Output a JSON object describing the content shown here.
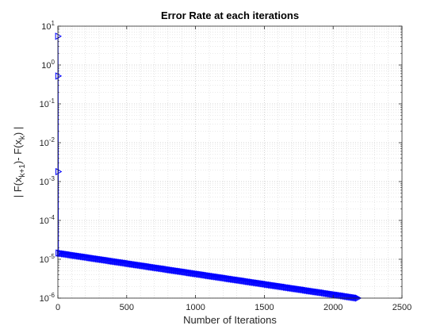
{
  "chart_data": {
    "type": "line",
    "title": "Error Rate at each iterations",
    "xlabel": "Number of Iterations",
    "ylabel": "| F(x_{k+1})- F(x_k) |",
    "ylabel_parts": {
      "pre1": "| F(x",
      "sub1": "k+1",
      "mid": ")- F(x",
      "sub2": "k",
      "post": ") |"
    },
    "xlim": [
      0,
      2500
    ],
    "ylim": [
      1e-06,
      10
    ],
    "yscale": "log",
    "grid": true,
    "minor_grid": true,
    "xticks": [
      0,
      500,
      1000,
      1500,
      2000,
      2500
    ],
    "xtick_labels": [
      "0",
      "500",
      "1000",
      "1500",
      "2000",
      "2500"
    ],
    "yticks": [
      {
        "value": 1e-06,
        "base": "10",
        "exp": "-6"
      },
      {
        "value": 1e-05,
        "base": "10",
        "exp": "-5"
      },
      {
        "value": 0.0001,
        "base": "10",
        "exp": "-4"
      },
      {
        "value": 0.001,
        "base": "10",
        "exp": "-3"
      },
      {
        "value": 0.01,
        "base": "10",
        "exp": "-2"
      },
      {
        "value": 0.1,
        "base": "10",
        "exp": "-1"
      },
      {
        "value": 1,
        "base": "10",
        "exp": "0"
      },
      {
        "value": 10,
        "base": "10",
        "exp": "1"
      }
    ],
    "series": [
      {
        "color": "#0000ff",
        "marker": "triangle-right",
        "initial_points": [
          {
            "x": 1,
            "y": 5.5
          },
          {
            "x": 2,
            "y": 0.52
          },
          {
            "x": 3,
            "y": 0.0018
          }
        ],
        "decay": {
          "x_start": 4,
          "y_start": 1.45e-05,
          "x_end": 2180,
          "y_end": 1e-06
        }
      }
    ]
  }
}
